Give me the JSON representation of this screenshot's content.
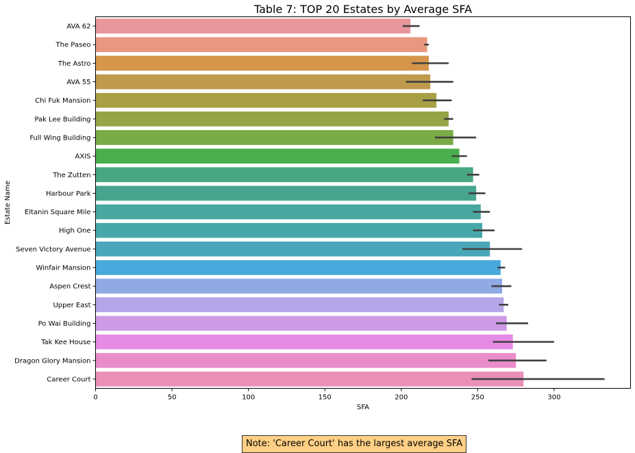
{
  "chart_data": {
    "type": "bar",
    "orientation": "horizontal",
    "title": "Table 7: TOP 20 Estates by Average SFA",
    "xlabel": "SFA",
    "ylabel": "Estate Name",
    "xlim": [
      0,
      350
    ],
    "xticks": [
      0,
      50,
      100,
      150,
      200,
      250,
      300
    ],
    "categories": [
      "AVA 62",
      "The Paseo",
      "The Astro",
      "AVA 55",
      "Chi Fuk Mansion",
      "Pak Lee Building",
      "Full Wing Building",
      "AXIS",
      "The Zutten",
      "Harbour Park",
      "Eltanin Square Mile",
      "High One",
      "Seven Victory Avenue",
      "Winfair Mansion",
      "Aspen Crest",
      "Upper East",
      "Po Wai Building",
      "Tak Kee House",
      "Dragon Glory Mansion",
      "Career Court"
    ],
    "values": [
      206,
      217,
      218,
      219,
      223,
      231,
      234,
      238,
      247,
      249,
      252,
      253,
      258,
      265,
      266,
      267,
      269,
      273,
      275,
      280
    ],
    "error_bars": [
      [
        201,
        212
      ],
      [
        215,
        218
      ],
      [
        207,
        231
      ],
      [
        203,
        234
      ],
      [
        214,
        233
      ],
      [
        228,
        234
      ],
      [
        222,
        249
      ],
      [
        233,
        243
      ],
      [
        243,
        251
      ],
      [
        244,
        255
      ],
      [
        247,
        258
      ],
      [
        247,
        261
      ],
      [
        240,
        279
      ],
      [
        263,
        268
      ],
      [
        259,
        272
      ],
      [
        264,
        270
      ],
      [
        262,
        283
      ],
      [
        260,
        300
      ],
      [
        257,
        295
      ],
      [
        246,
        333
      ]
    ],
    "colors": [
      "#e8969c",
      "#e8987e",
      "#d5954a",
      "#c09a4c",
      "#a9a046",
      "#93a545",
      "#7aaa46",
      "#4aae4e",
      "#47a781",
      "#47a58f",
      "#48a89f",
      "#48a7a9",
      "#4aa6b9",
      "#48a9dc",
      "#90aae6",
      "#b5a5e8",
      "#cd9be6",
      "#e58ae5",
      "#ea8cca",
      "#ea8fb8"
    ],
    "grid": false,
    "legend": "none"
  },
  "note": "Note: 'Career Court' has the largest average SFA"
}
